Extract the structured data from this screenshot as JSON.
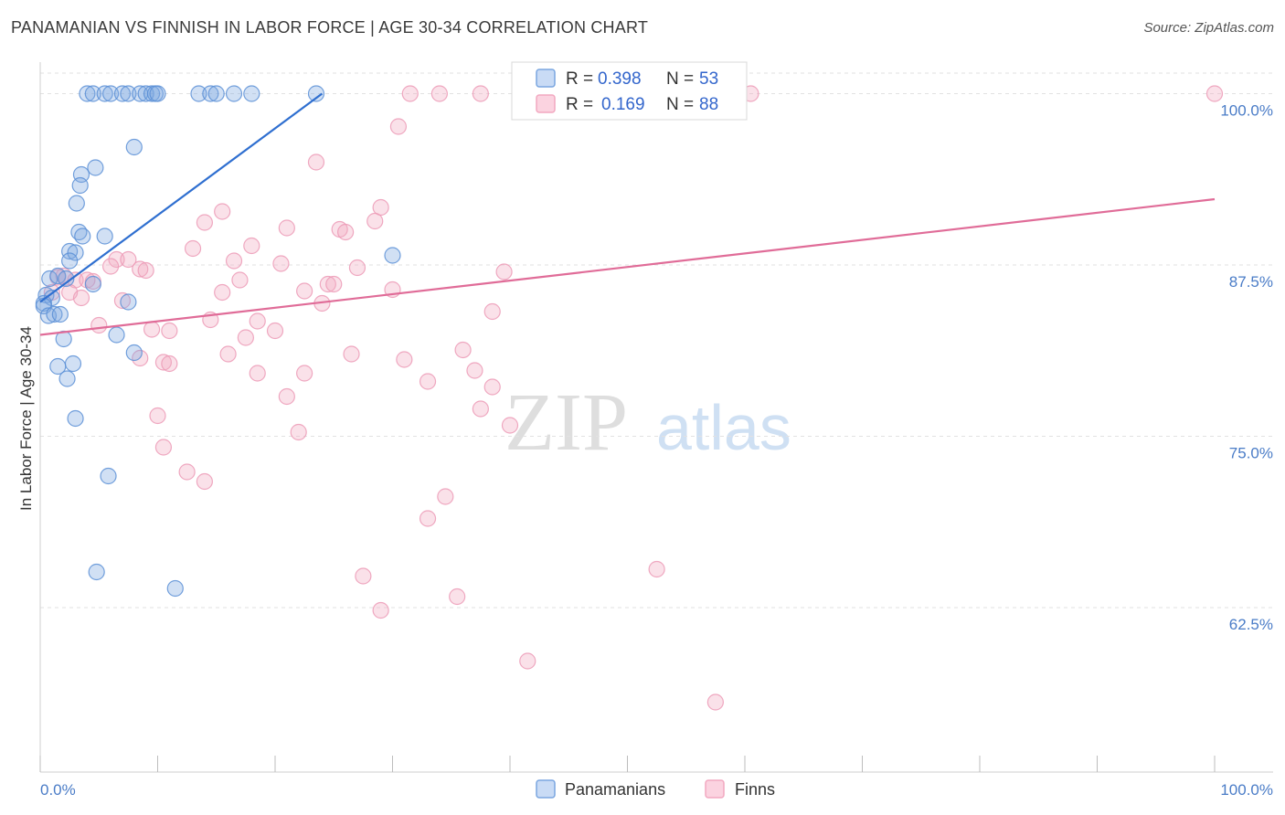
{
  "title": "PANAMANIAN VS FINNISH IN LABOR FORCE | AGE 30-34 CORRELATION CHART",
  "source": "Source: ZipAtlas.com",
  "watermark": {
    "zip": "ZIP",
    "atlas": "atlas"
  },
  "colors": {
    "blue": "#7aa6e0",
    "blue_line": "#2f6fd0",
    "pink": "#f2a8c0",
    "pink_line": "#e06c98",
    "tick_text": "#4a7cc7"
  },
  "chart_data": {
    "type": "scatter",
    "title": "PANAMANIAN VS FINNISH IN LABOR FORCE | AGE 30-34 CORRELATION CHART",
    "xlabel": "",
    "ylabel": "In Labor Force | Age 30-34",
    "xlim": [
      0,
      100
    ],
    "ylim": [
      50.5,
      101.5
    ],
    "x_tick_labels": [
      "0.0%",
      "100.0%"
    ],
    "y_ticks": [
      100.0,
      87.5,
      75.0,
      62.5
    ],
    "y_tick_labels": [
      "100.0%",
      "87.5%",
      "75.0%",
      "62.5%"
    ],
    "grid": true,
    "legend": {
      "r_label": "R =",
      "n_label": "N =",
      "entries": [
        {
          "name": "Panamanians",
          "r": "0.398",
          "n": "53"
        },
        {
          "name": "Finns",
          "r": "0.169",
          "n": "88"
        }
      ]
    },
    "series": [
      {
        "name": "Panamanians",
        "color": "#7aa6e0",
        "trend": {
          "x": [
            0.0,
            24.0
          ],
          "y": [
            84.8,
            100.0
          ]
        },
        "points": [
          [
            4.0,
            100
          ],
          [
            4.5,
            100
          ],
          [
            5.5,
            100
          ],
          [
            6.0,
            100
          ],
          [
            7.0,
            100
          ],
          [
            7.5,
            100
          ],
          [
            8.5,
            100
          ],
          [
            9.0,
            100
          ],
          [
            9.5,
            100
          ],
          [
            9.8,
            100
          ],
          [
            10.0,
            100
          ],
          [
            13.5,
            100
          ],
          [
            14.5,
            100
          ],
          [
            15.0,
            100
          ],
          [
            16.5,
            100
          ],
          [
            18.0,
            100
          ],
          [
            23.5,
            100
          ],
          [
            8.0,
            96.1
          ],
          [
            4.7,
            94.6
          ],
          [
            3.5,
            94.1
          ],
          [
            3.4,
            93.3
          ],
          [
            3.1,
            92.0
          ],
          [
            3.3,
            89.9
          ],
          [
            3.6,
            89.6
          ],
          [
            5.5,
            89.6
          ],
          [
            2.5,
            88.5
          ],
          [
            3.0,
            88.4
          ],
          [
            2.5,
            87.8
          ],
          [
            0.8,
            86.5
          ],
          [
            1.5,
            86.7
          ],
          [
            2.2,
            86.5
          ],
          [
            4.5,
            86.1
          ],
          [
            0.5,
            85.3
          ],
          [
            1.0,
            85.1
          ],
          [
            0.3,
            84.7
          ],
          [
            0.3,
            84.5
          ],
          [
            7.5,
            84.8
          ],
          [
            0.7,
            83.8
          ],
          [
            1.2,
            83.9
          ],
          [
            1.7,
            83.9
          ],
          [
            2.0,
            82.1
          ],
          [
            6.5,
            82.4
          ],
          [
            8.0,
            81.1
          ],
          [
            2.8,
            80.3
          ],
          [
            1.5,
            80.1
          ],
          [
            2.3,
            79.2
          ],
          [
            3.0,
            76.3
          ],
          [
            5.8,
            72.1
          ],
          [
            4.8,
            65.1
          ],
          [
            11.5,
            63.9
          ],
          [
            30.0,
            88.2
          ]
        ]
      },
      {
        "name": "Finns",
        "color": "#f2a8c0",
        "trend": {
          "x": [
            0.0,
            100.0
          ],
          "y": [
            82.4,
            92.3
          ]
        },
        "points": [
          [
            31.5,
            100
          ],
          [
            34.0,
            100
          ],
          [
            37.5,
            100
          ],
          [
            47.0,
            100
          ],
          [
            55.0,
            100
          ],
          [
            60.5,
            100
          ],
          [
            100.0,
            100
          ],
          [
            30.5,
            97.6
          ],
          [
            23.5,
            95.0
          ],
          [
            29.0,
            91.7
          ],
          [
            15.5,
            91.4
          ],
          [
            14.0,
            90.6
          ],
          [
            21.0,
            90.2
          ],
          [
            25.5,
            90.1
          ],
          [
            26.0,
            89.9
          ],
          [
            28.5,
            90.7
          ],
          [
            13.0,
            88.7
          ],
          [
            18.0,
            88.9
          ],
          [
            16.5,
            87.8
          ],
          [
            6.5,
            87.9
          ],
          [
            7.5,
            87.9
          ],
          [
            20.5,
            87.6
          ],
          [
            27.0,
            87.3
          ],
          [
            6.0,
            87.4
          ],
          [
            8.5,
            87.2
          ],
          [
            9.0,
            87.1
          ],
          [
            1.5,
            86.6
          ],
          [
            2.0,
            86.7
          ],
          [
            3.0,
            86.4
          ],
          [
            4.0,
            86.4
          ],
          [
            4.5,
            86.3
          ],
          [
            17.0,
            86.4
          ],
          [
            24.5,
            86.1
          ],
          [
            25.0,
            86.1
          ],
          [
            1.0,
            85.5
          ],
          [
            2.5,
            85.5
          ],
          [
            3.5,
            85.1
          ],
          [
            7.0,
            84.9
          ],
          [
            15.5,
            85.5
          ],
          [
            22.5,
            85.6
          ],
          [
            30.0,
            85.7
          ],
          [
            39.5,
            87.0
          ],
          [
            24.0,
            84.7
          ],
          [
            38.5,
            84.1
          ],
          [
            14.5,
            83.5
          ],
          [
            18.5,
            83.4
          ],
          [
            20.0,
            82.7
          ],
          [
            5.0,
            83.1
          ],
          [
            9.5,
            82.8
          ],
          [
            11.0,
            82.7
          ],
          [
            17.5,
            82.2
          ],
          [
            16.0,
            81.0
          ],
          [
            26.5,
            81.0
          ],
          [
            8.5,
            80.7
          ],
          [
            10.5,
            80.4
          ],
          [
            11.0,
            80.3
          ],
          [
            31.0,
            80.6
          ],
          [
            36.0,
            81.3
          ],
          [
            18.5,
            79.6
          ],
          [
            22.5,
            79.6
          ],
          [
            37.0,
            79.8
          ],
          [
            33.0,
            79.0
          ],
          [
            38.5,
            78.6
          ],
          [
            21.0,
            77.9
          ],
          [
            37.5,
            77.0
          ],
          [
            10.0,
            76.5
          ],
          [
            40.0,
            75.8
          ],
          [
            22.0,
            75.3
          ],
          [
            10.5,
            74.2
          ],
          [
            12.5,
            72.4
          ],
          [
            14.0,
            71.7
          ],
          [
            34.5,
            70.6
          ],
          [
            33.0,
            69.0
          ],
          [
            52.5,
            65.3
          ],
          [
            27.5,
            64.8
          ],
          [
            35.5,
            63.3
          ],
          [
            29.0,
            62.3
          ],
          [
            41.5,
            58.6
          ],
          [
            57.5,
            55.6
          ]
        ]
      }
    ]
  }
}
